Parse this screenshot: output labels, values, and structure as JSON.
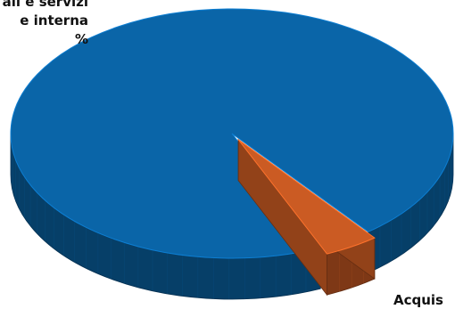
{
  "chart_data": {
    "type": "pie",
    "style": "3d-exploded",
    "slices": [
      {
        "label_lines": [
          "ali e servizi",
          "e interna",
          "%"
        ],
        "value": 96,
        "color": "#0a65a8"
      },
      {
        "label_lines": [
          "Acquis"
        ],
        "value": 4,
        "color": "#cb5b23"
      }
    ]
  }
}
